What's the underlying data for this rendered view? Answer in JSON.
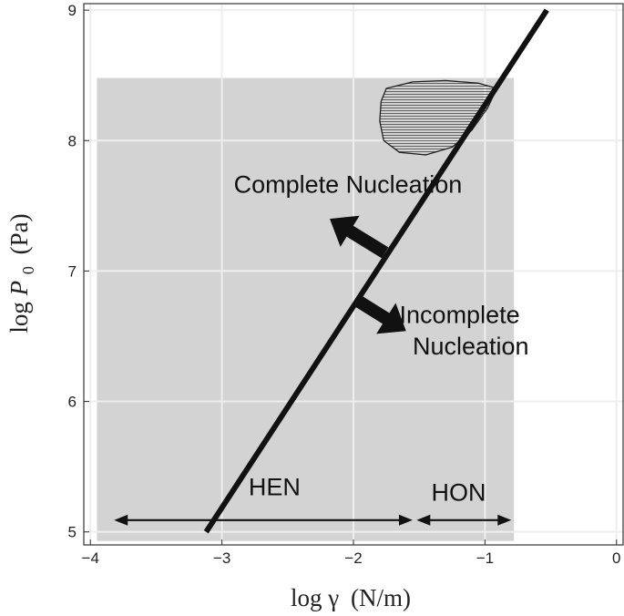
{
  "chart_data": {
    "type": "line",
    "xlabel_prefix": "log γ",
    "xlabel_unit": "(N/m)",
    "ylabel_prefix": "log ",
    "ylabel_var": "P",
    "ylabel_sub": "0",
    "ylabel_unit": "(Pa)",
    "xlim": [
      -4.05,
      0.05
    ],
    "ylim": [
      4.9,
      9.05
    ],
    "xticks": [
      -4,
      -3,
      -2,
      -1,
      0
    ],
    "yticks": [
      5,
      6,
      7,
      8,
      9
    ],
    "grid": true,
    "shaded_region": {
      "x": [
        -3.95,
        -0.78
      ],
      "y": [
        4.93,
        8.48
      ],
      "color": "#d3d3d3"
    },
    "series": [
      {
        "x": [
          -3.12,
          -0.53
        ],
        "y": [
          5.0,
          9.0
        ],
        "color": "#111111"
      }
    ],
    "hatched_blob": [
      [
        -1.75,
        8.4
      ],
      [
        -1.55,
        8.45
      ],
      [
        -1.3,
        8.46
      ],
      [
        -1.05,
        8.44
      ],
      [
        -0.91,
        8.4
      ],
      [
        -0.98,
        8.25
      ],
      [
        -1.1,
        8.08
      ],
      [
        -1.25,
        7.95
      ],
      [
        -1.45,
        7.89
      ],
      [
        -1.65,
        7.91
      ],
      [
        -1.77,
        8.0
      ],
      [
        -1.8,
        8.15
      ],
      [
        -1.79,
        8.3
      ]
    ],
    "arrows": [
      {
        "name": "complete",
        "from": [
          -1.76,
          7.14
        ],
        "to": [
          -2.18,
          7.4
        ]
      },
      {
        "name": "incomplete",
        "from": [
          -1.98,
          6.78
        ],
        "to": [
          -1.6,
          6.54
        ]
      }
    ],
    "ranges": [
      {
        "label": "HEN",
        "x": [
          -3.82,
          -1.55
        ],
        "y": 5.09,
        "label_pos": [
          -2.6,
          5.28
        ]
      },
      {
        "label": "HON",
        "x": [
          -1.52,
          -0.8
        ],
        "y": 5.09,
        "label_pos": [
          -1.2,
          5.24
        ]
      }
    ],
    "annotations": [
      {
        "text": "Complete Nucleation",
        "pos": [
          -2.91,
          7.6
        ]
      },
      {
        "text": "Incomplete",
        "pos": [
          -1.65,
          6.6
        ]
      },
      {
        "text": "Nucleation",
        "pos": [
          -1.55,
          6.36
        ]
      }
    ],
    "tick_labels_x": [
      "−4",
      "−3",
      "−2",
      "−1",
      "0"
    ],
    "tick_labels_y": [
      "5",
      "6",
      "7",
      "8",
      "9"
    ]
  }
}
